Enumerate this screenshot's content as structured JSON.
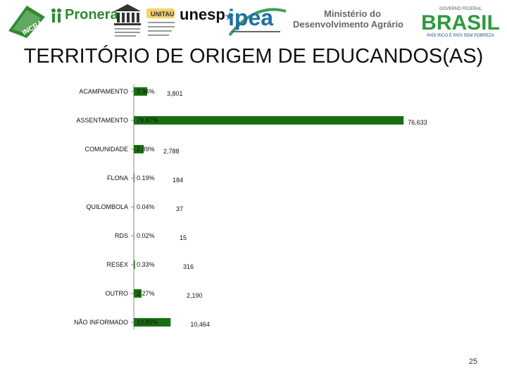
{
  "header": {
    "logos": {
      "incra": {
        "text": "INCRA"
      },
      "pronera": {
        "text": "Pronera"
      },
      "unesco": {
        "text": "UNESCO"
      },
      "unitau": {
        "text": "UNITAU"
      },
      "unesp": {
        "text": "unesp"
      },
      "ipea": {
        "text": "ipea"
      },
      "mda": {
        "line1": "Ministério do",
        "line2": "Desenvolvimento Agrário"
      },
      "brasil": {
        "top": "GOVERNO FEDERAL",
        "word": "BRASIL",
        "bottom": "PAÍS RICO É PAÍS SEM POBREZA"
      }
    }
  },
  "title": "TERRITÓRIO DE ORIGEM DE EDUCANDOS(AS)",
  "page_number": "25",
  "chart_data": {
    "type": "bar",
    "orientation": "horizontal",
    "title": "TERRITÓRIO DE ORIGEM DE EDUCANDOS(AS)",
    "categories": [
      "ACAMPAMENTO",
      "ASSENTAMENTO",
      "COMUNIDADE",
      "FLONA",
      "QUILOMBOLA",
      "RDS",
      "RESEX",
      "OUTRO",
      "NÃO INFORMADO"
    ],
    "values": [
      3801,
      76633,
      2788,
      184,
      37,
      15,
      316,
      2190,
      10464
    ],
    "value_labels": [
      "3,801",
      "76,633",
      "2,788",
      "184",
      "37",
      "15",
      "316",
      "2,190",
      "10,464"
    ],
    "percent_labels": [
      "3.94%",
      "79.47%",
      "2.89%",
      "0.19%",
      "0.04%",
      "0.02%",
      "0.33%",
      "2.27%",
      "10.85%"
    ],
    "bar_color": "#1a6e12",
    "xlim": [
      0,
      80000
    ],
    "grid": false,
    "legend": "none"
  }
}
